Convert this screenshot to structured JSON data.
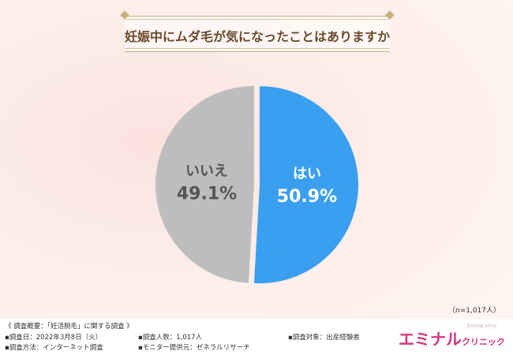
{
  "title": "妊娠中にムダ毛が気になったことはありますか",
  "chart_data": {
    "type": "pie",
    "slices": [
      {
        "label": "はい",
        "percent_text": "50.9%",
        "value": 50.9,
        "color": "#3b9ff0"
      },
      {
        "label": "いいえ",
        "percent_text": "49.1%",
        "value": 49.1,
        "color": "#bdbdbd"
      }
    ]
  },
  "sample_note": "（n=1,017人）",
  "footer": {
    "heading": "《 調査概要：「妊活脱毛」に関する調査 》",
    "date": "▪調査日：2022年3月8日（火）",
    "method": "▪調査方法：インターネット調査",
    "count": "▪調査人数：1,017人",
    "provider": "▪モニター提供元：ゼネラルリサーチ",
    "target": "▪調査対象：出産経験者"
  },
  "brand": {
    "main": "エミナル",
    "sub": "クリニック",
    "en": "Eminal clinic"
  }
}
